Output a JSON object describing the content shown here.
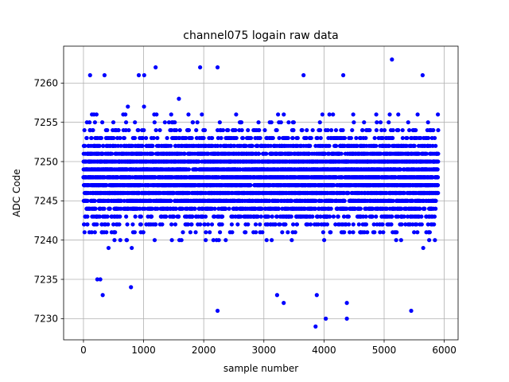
{
  "chart_data": {
    "type": "scatter",
    "title": "channel075 logain raw data",
    "xlabel": "sample number",
    "ylabel": "ADC Code",
    "xlim": [
      -330,
      6230
    ],
    "ylim": [
      7227.3,
      7264.7
    ],
    "xticks": [
      0,
      1000,
      2000,
      3000,
      4000,
      5000,
      6000
    ],
    "yticks": [
      7230,
      7235,
      7240,
      7245,
      7250,
      7255,
      7260
    ],
    "grid": true,
    "marker_color": "#0000ff",
    "series": [
      {
        "n_samples": 5900,
        "value_range_dense": [
          7241,
          7255
        ],
        "value_range_sparse": [
          7234,
          7260
        ],
        "outliers": [
          {
            "x": 2230,
            "y": 7231
          },
          {
            "x": 3860,
            "y": 7229
          },
          {
            "x": 4030,
            "y": 7230
          },
          {
            "x": 4380,
            "y": 7230
          },
          {
            "x": 4380,
            "y": 7232
          },
          {
            "x": 3330,
            "y": 7232
          },
          {
            "x": 3880,
            "y": 7233
          },
          {
            "x": 3220,
            "y": 7233
          },
          {
            "x": 320,
            "y": 7233
          },
          {
            "x": 790,
            "y": 7234
          },
          {
            "x": 5130,
            "y": 7263
          },
          {
            "x": 2230,
            "y": 7262
          },
          {
            "x": 1200,
            "y": 7262
          },
          {
            "x": 5450,
            "y": 7231
          },
          {
            "x": 1940,
            "y": 7262
          },
          {
            "x": 4320,
            "y": 7261
          },
          {
            "x": 3660,
            "y": 7261
          },
          {
            "x": 5640,
            "y": 7261
          },
          {
            "x": 920,
            "y": 7261
          },
          {
            "x": 110,
            "y": 7261
          },
          {
            "x": 350,
            "y": 7261
          },
          {
            "x": 1010,
            "y": 7261
          },
          {
            "x": 230,
            "y": 7235
          },
          {
            "x": 280,
            "y": 7235
          }
        ]
      }
    ]
  }
}
